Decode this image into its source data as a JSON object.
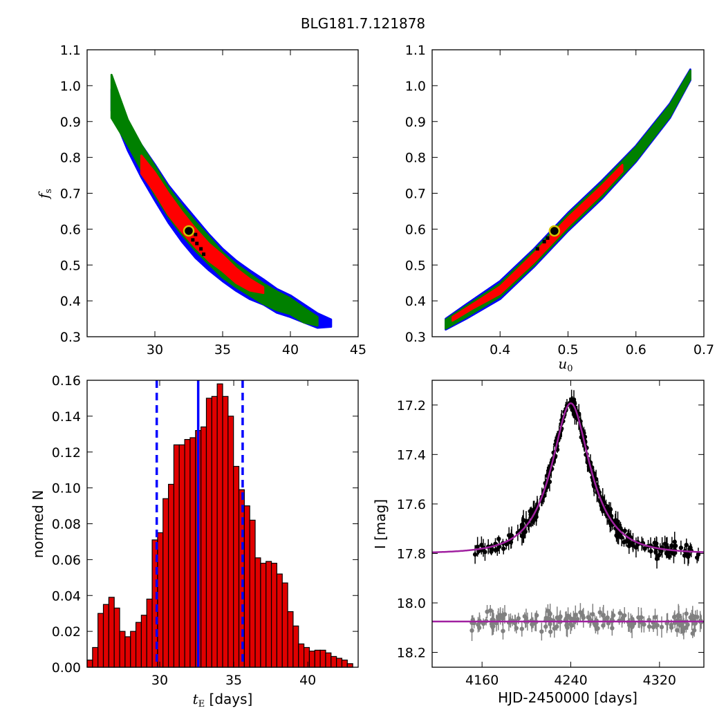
{
  "figure": {
    "title": "BLG181.7.121878"
  },
  "colors": {
    "region_outer": "#0000ff",
    "region_mid": "#008000",
    "region_inner": "#ff0000",
    "samples": "#000000",
    "best_fill": "#000000",
    "best_ring": "#d4c400",
    "hist_fill": "#e00000",
    "hist_edge": "#000000",
    "vlines": "#0000ff",
    "model": "#a020a0",
    "data_primary": "#000000",
    "data_secondary": "#808080"
  },
  "chart_data": [
    {
      "id": "tE-vs-fs",
      "type": "heatmap",
      "xlabel_main": "",
      "ylabel_main": "f",
      "ylabel_sub": "s",
      "xlim": [
        25,
        45
      ],
      "ylim": [
        0.3,
        1.1
      ],
      "xticks": [
        30,
        35,
        40,
        45
      ],
      "yticks": [
        0.3,
        0.4,
        0.5,
        0.6,
        0.7,
        0.8,
        0.9,
        1.0,
        1.1
      ],
      "best_fit": {
        "x": 32.5,
        "y": 0.595
      },
      "regions": {
        "outer": [
          [
            26.8,
            0.96,
            0.03
          ],
          [
            28.0,
            0.86,
            0.04
          ],
          [
            29.0,
            0.79,
            0.045
          ],
          [
            30.0,
            0.73,
            0.05
          ],
          [
            31.0,
            0.67,
            0.052
          ],
          [
            32.0,
            0.62,
            0.055
          ],
          [
            33.0,
            0.575,
            0.055
          ],
          [
            34.0,
            0.535,
            0.05
          ],
          [
            35.0,
            0.5,
            0.045
          ],
          [
            36.0,
            0.47,
            0.042
          ],
          [
            37.0,
            0.445,
            0.04
          ],
          [
            38.0,
            0.425,
            0.035
          ],
          [
            39.0,
            0.4,
            0.033
          ],
          [
            40.0,
            0.385,
            0.03
          ],
          [
            41.0,
            0.365,
            0.025
          ],
          [
            42.0,
            0.345,
            0.02
          ],
          [
            43.0,
            0.338,
            0.01
          ]
        ],
        "mid": [
          [
            26.8,
            0.97,
            0.06
          ],
          [
            28.0,
            0.87,
            0.035
          ],
          [
            29.0,
            0.8,
            0.035
          ],
          [
            30.0,
            0.735,
            0.04
          ],
          [
            31.0,
            0.675,
            0.04
          ],
          [
            32.0,
            0.625,
            0.04
          ],
          [
            33.0,
            0.58,
            0.04
          ],
          [
            34.0,
            0.54,
            0.038
          ],
          [
            35.0,
            0.5,
            0.035
          ],
          [
            36.0,
            0.47,
            0.032
          ],
          [
            37.0,
            0.445,
            0.03
          ],
          [
            38.0,
            0.42,
            0.028
          ],
          [
            39.0,
            0.4,
            0.026
          ],
          [
            40.0,
            0.385,
            0.022
          ],
          [
            41.0,
            0.36,
            0.02
          ],
          [
            42.0,
            0.343,
            0.012
          ]
        ],
        "inner": [
          [
            29.0,
            0.78,
            0.025
          ],
          [
            30.0,
            0.73,
            0.028
          ],
          [
            31.0,
            0.67,
            0.03
          ],
          [
            32.0,
            0.62,
            0.028
          ],
          [
            33.0,
            0.575,
            0.026
          ],
          [
            34.0,
            0.535,
            0.024
          ],
          [
            35.0,
            0.505,
            0.022
          ],
          [
            36.0,
            0.47,
            0.02
          ],
          [
            37.0,
            0.445,
            0.016
          ],
          [
            38.0,
            0.43,
            0.008
          ]
        ]
      },
      "samples": [
        [
          32.8,
          0.57
        ],
        [
          33.1,
          0.56
        ],
        [
          33.4,
          0.545
        ],
        [
          33.0,
          0.585
        ],
        [
          33.6,
          0.53
        ]
      ]
    },
    {
      "id": "u0-vs-fs",
      "type": "heatmap",
      "xlabel_main": "u",
      "xlabel_sub": "0",
      "ylabel_main": "",
      "xlim": [
        0.3,
        0.7
      ],
      "ylim": [
        0.3,
        1.1
      ],
      "xticks": [
        0.4,
        0.5,
        0.6,
        0.7
      ],
      "yticks": [
        0.3,
        0.4,
        0.5,
        0.6,
        0.7,
        0.8,
        0.9,
        1.0,
        1.1
      ],
      "best_fit": {
        "x": 0.48,
        "y": 0.595
      },
      "regions": {
        "outer": [
          [
            0.32,
            0.335,
            0.015
          ],
          [
            0.35,
            0.37,
            0.02
          ],
          [
            0.4,
            0.43,
            0.025
          ],
          [
            0.45,
            0.52,
            0.025
          ],
          [
            0.5,
            0.62,
            0.025
          ],
          [
            0.55,
            0.71,
            0.025
          ],
          [
            0.6,
            0.81,
            0.022
          ],
          [
            0.65,
            0.93,
            0.02
          ],
          [
            0.68,
            1.03,
            0.015
          ]
        ],
        "mid": [
          [
            0.32,
            0.335,
            0.012
          ],
          [
            0.35,
            0.37,
            0.015
          ],
          [
            0.4,
            0.43,
            0.018
          ],
          [
            0.45,
            0.52,
            0.02
          ],
          [
            0.5,
            0.62,
            0.02
          ],
          [
            0.55,
            0.71,
            0.02
          ],
          [
            0.6,
            0.81,
            0.018
          ],
          [
            0.65,
            0.93,
            0.016
          ],
          [
            0.68,
            1.03,
            0.012
          ]
        ],
        "inner": [
          [
            0.33,
            0.35,
            0.005
          ],
          [
            0.36,
            0.385,
            0.006
          ],
          [
            0.4,
            0.43,
            0.01
          ],
          [
            0.45,
            0.52,
            0.012
          ],
          [
            0.5,
            0.62,
            0.012
          ],
          [
            0.55,
            0.71,
            0.011
          ],
          [
            0.58,
            0.77,
            0.009
          ]
        ]
      },
      "samples": [
        [
          0.465,
          0.565
        ],
        [
          0.47,
          0.575
        ],
        [
          0.455,
          0.545
        ]
      ]
    },
    {
      "id": "tE-histogram",
      "type": "bar",
      "xlabel_main": "t",
      "xlabel_sub": "E",
      "xlabel_suffix": " [days]",
      "ylabel": "normed N",
      "xlim": [
        25.1,
        43.4
      ],
      "ylim": [
        0,
        0.16
      ],
      "xticks": [
        30,
        35,
        40
      ],
      "yticks": [
        0.0,
        0.02,
        0.04,
        0.06,
        0.08,
        0.1,
        0.12,
        0.14,
        0.16
      ],
      "ytick_labels": [
        "0.00",
        "0.02",
        "0.04",
        "0.06",
        "0.08",
        "0.10",
        "0.12",
        "0.14",
        "0.16"
      ],
      "bin_start": 25.1,
      "bin_width": 0.366,
      "values": [
        0.004,
        0.011,
        0.03,
        0.035,
        0.039,
        0.033,
        0.02,
        0.017,
        0.02,
        0.025,
        0.029,
        0.038,
        0.071,
        0.075,
        0.094,
        0.102,
        0.124,
        0.124,
        0.127,
        0.128,
        0.132,
        0.134,
        0.15,
        0.151,
        0.158,
        0.151,
        0.14,
        0.112,
        0.099,
        0.09,
        0.082,
        0.061,
        0.058,
        0.059,
        0.058,
        0.052,
        0.047,
        0.031,
        0.023,
        0.013,
        0.011,
        0.009,
        0.0095,
        0.0095,
        0.008,
        0.006,
        0.005,
        0.004,
        0.002
      ],
      "median": 32.6,
      "interval": [
        29.8,
        35.6
      ]
    },
    {
      "id": "light-curve",
      "type": "scatter",
      "xlabel": "HJD-2450000 [days]",
      "ylabel": "I [mag]",
      "xlim": [
        4115,
        4360
      ],
      "ylim": [
        18.26,
        17.1
      ],
      "y_inverted": true,
      "xticks": [
        4160,
        4240,
        4320
      ],
      "yticks": [
        17.2,
        17.4,
        17.6,
        17.8,
        18.0,
        18.2
      ],
      "model": {
        "t0": 4240,
        "tE": 32.6,
        "u0": 0.48,
        "fs": 0.595,
        "baseline": 17.8
      },
      "secondary_baseline": 18.075,
      "data_range": [
        4150,
        4360
      ]
    }
  ]
}
